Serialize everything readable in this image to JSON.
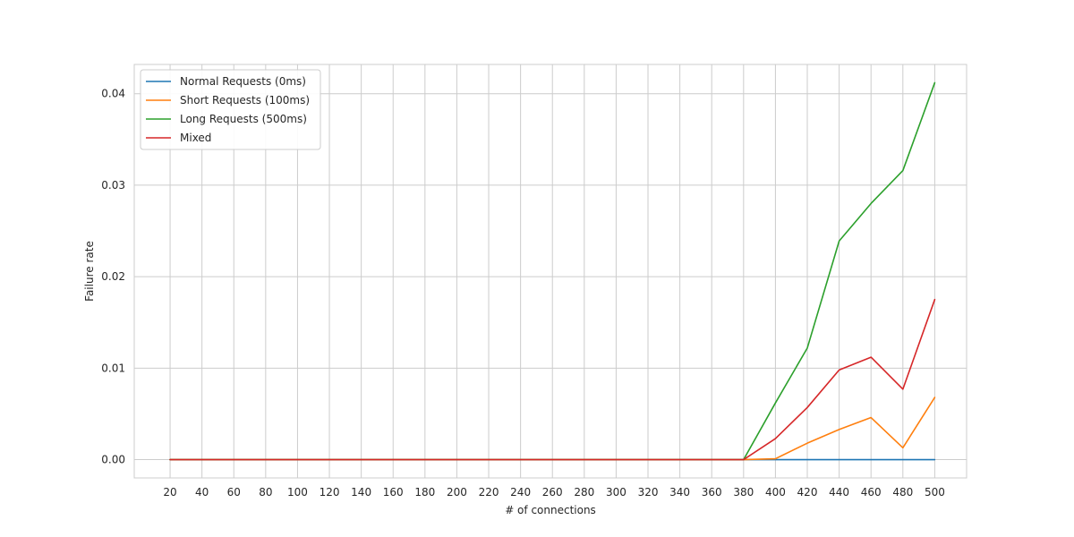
{
  "chart_data": {
    "type": "line",
    "title": "",
    "xlabel": "# of connections",
    "ylabel": "Failure rate",
    "x": [
      20,
      40,
      60,
      80,
      100,
      120,
      140,
      160,
      180,
      200,
      220,
      240,
      260,
      280,
      300,
      320,
      340,
      360,
      380,
      400,
      420,
      440,
      460,
      480,
      500
    ],
    "x_tick_labels": [
      "20",
      "40",
      "60",
      "80",
      "100",
      "120",
      "140",
      "160",
      "180",
      "200",
      "220",
      "240",
      "260",
      "280",
      "300",
      "320",
      "340",
      "360",
      "380",
      "400",
      "420",
      "440",
      "460",
      "480",
      "500"
    ],
    "y_ticks": [
      0.0,
      0.01,
      0.02,
      0.03,
      0.04
    ],
    "y_tick_labels": [
      "0.00",
      "0.01",
      "0.02",
      "0.03",
      "0.04"
    ],
    "xlim": [
      -2.5,
      520
    ],
    "ylim": [
      -0.002,
      0.0432
    ],
    "grid": true,
    "legend_position": "top-left",
    "series": [
      {
        "name": "Normal Requests (0ms)",
        "color": "#1f77b4",
        "values": [
          0,
          0,
          0,
          0,
          0,
          0,
          0,
          0,
          0,
          0,
          0,
          0,
          0,
          0,
          0,
          0,
          0,
          0,
          0,
          0,
          0,
          0,
          0,
          0,
          0
        ]
      },
      {
        "name": "Short Requests (100ms)",
        "color": "#ff7f0e",
        "values": [
          0,
          0,
          0,
          0,
          0,
          0,
          0,
          0,
          0,
          0,
          0,
          0,
          0,
          0,
          0,
          0,
          0,
          0,
          0,
          0.0001,
          0.0018,
          0.0033,
          0.0046,
          0.0013,
          0.0068
        ]
      },
      {
        "name": "Long Requests (500ms)",
        "color": "#2ca02c",
        "values": [
          0,
          0,
          0,
          0,
          0,
          0,
          0,
          0,
          0,
          0,
          0,
          0,
          0,
          0,
          0,
          0,
          0,
          0,
          0,
          0.0062,
          0.0122,
          0.0239,
          0.028,
          0.0316,
          0.0412
        ]
      },
      {
        "name": "Mixed",
        "color": "#d62728",
        "values": [
          0,
          0,
          0,
          0,
          0,
          0,
          0,
          0,
          0,
          0,
          0,
          0,
          0,
          0,
          0,
          0,
          0,
          0,
          0,
          0.0023,
          0.0057,
          0.0098,
          0.0112,
          0.0077,
          0.0175
        ]
      }
    ]
  }
}
